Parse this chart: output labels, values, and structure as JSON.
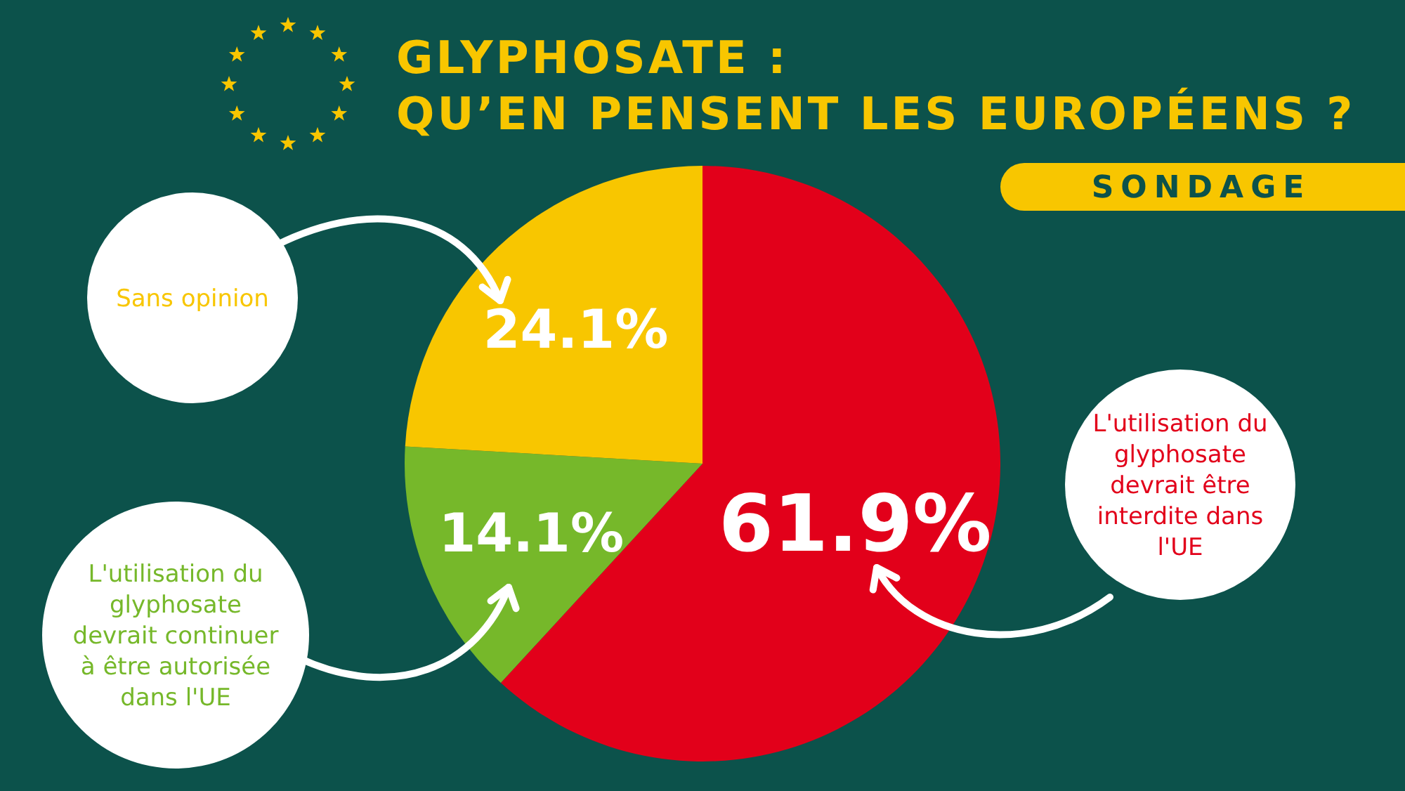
{
  "chart_data": {
    "type": "pie",
    "title": "GLYPHOSATE :\nQU’EN PENSENT LES EUROPÉENS ?",
    "subtitle": "SONDAGE",
    "categories": [
      "L'utilisation du glyphosate devrait être interdite dans l'UE",
      "L'utilisation du glyphosate devrait continuer à être autorisée dans l'UE",
      "Sans opinion"
    ],
    "values": [
      61.9,
      14.1,
      24.1
    ],
    "colors": [
      "#e2001a",
      "#76b82a",
      "#f8c600"
    ],
    "value_labels": [
      "61.9%",
      "14.1%",
      "24.1%"
    ]
  }
}
